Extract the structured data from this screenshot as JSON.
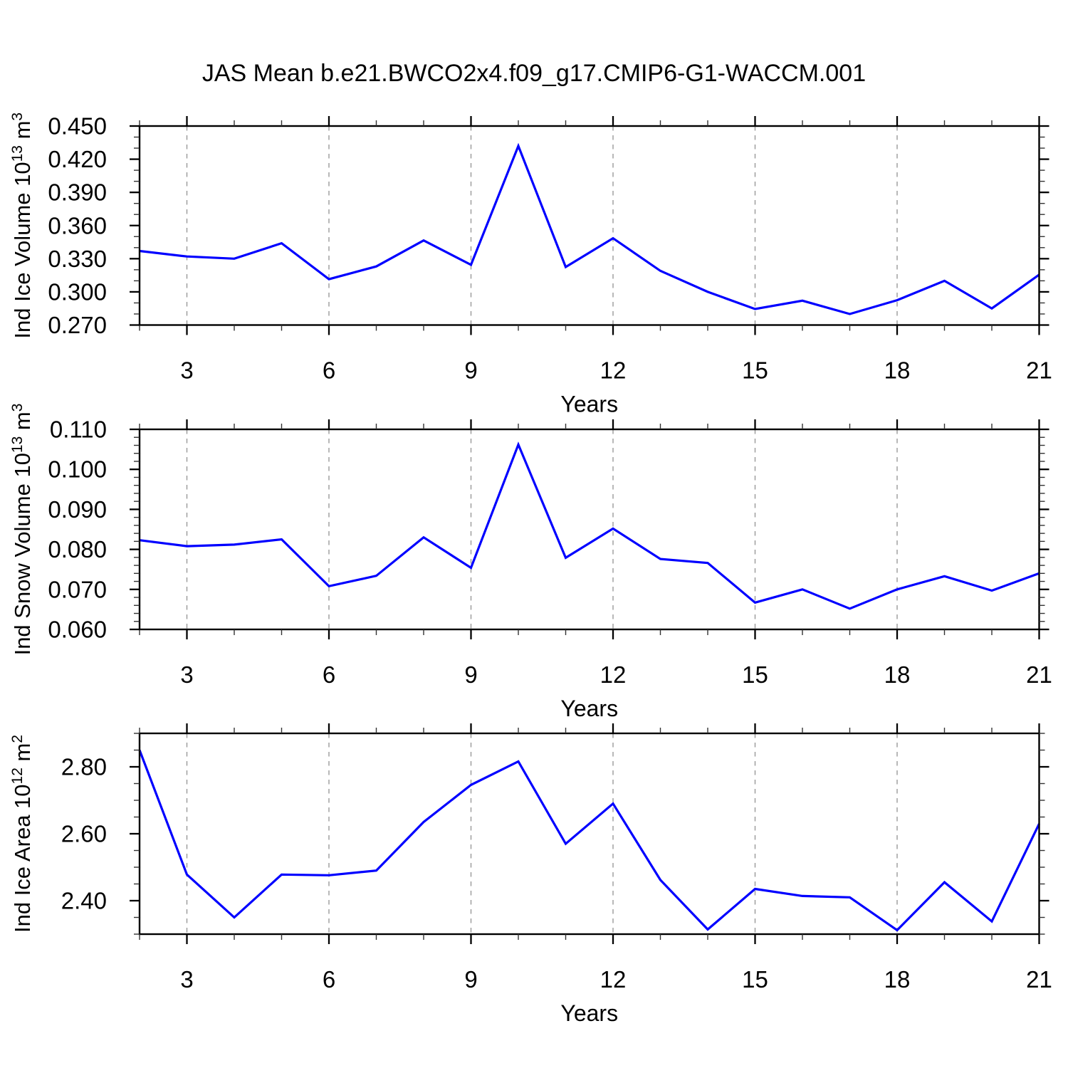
{
  "title": "JAS Mean b.e21.BWCO2x4.f09_g17.CMIP6-G1-WACCM.001",
  "chart_data": {
    "type": "line",
    "title": "JAS Mean b.e21.BWCO2x4.f09_g17.CMIP6-G1-WACCM.001",
    "xlabel": "Years",
    "x": [
      2,
      3,
      4,
      5,
      6,
      7,
      8,
      9,
      10,
      11,
      12,
      13,
      14,
      15,
      16,
      17,
      18,
      19,
      20,
      21
    ],
    "x_range": [
      2,
      21
    ],
    "x_major_ticks": [
      3,
      6,
      9,
      12,
      15,
      18,
      21
    ],
    "x_tick_labels": [
      "3",
      "6",
      "9",
      "12",
      "15",
      "18",
      "21"
    ],
    "x_minor_step": 1,
    "x_grid_years": [
      3,
      6,
      9,
      12,
      15,
      18
    ],
    "grid_style": "vertical dashed",
    "legend": "none",
    "series_color": "#0000ff",
    "grid_color": "#999999",
    "axis_color": "#000000",
    "panels": [
      {
        "id": "ice-volume",
        "ylabel": "Ind Ice Volume 10¹³ m³",
        "ylabel_parts": [
          {
            "text": "Ind Ice Volume 10",
            "sup": false
          },
          {
            "text": "13",
            "sup": true
          },
          {
            "text": " m",
            "sup": false
          },
          {
            "text": "3",
            "sup": true
          }
        ],
        "ylim": [
          0.27,
          0.45
        ],
        "y_major": [
          {
            "value": 0.45,
            "label": "0.450"
          },
          {
            "value": 0.42,
            "label": "0.420"
          },
          {
            "value": 0.39,
            "label": "0.390"
          },
          {
            "value": 0.36,
            "label": "0.360"
          },
          {
            "value": 0.33,
            "label": "0.330"
          },
          {
            "value": 0.3,
            "label": "0.300"
          },
          {
            "value": 0.27,
            "label": "0.270"
          }
        ],
        "y_minor_step": 0.01,
        "values": [
          0.337,
          0.332,
          0.33,
          0.344,
          0.3115,
          0.323,
          0.3465,
          0.3245,
          0.432,
          0.3225,
          0.3485,
          0.319,
          0.3,
          0.2845,
          0.292,
          0.28,
          0.2925,
          0.31,
          0.285,
          0.3155
        ]
      },
      {
        "id": "snow-volume",
        "ylabel": "Ind Snow Volume 10¹³ m³",
        "ylabel_parts": [
          {
            "text": "Ind Snow Volume 10",
            "sup": false
          },
          {
            "text": "13",
            "sup": true
          },
          {
            "text": " m",
            "sup": false
          },
          {
            "text": "3",
            "sup": true
          }
        ],
        "ylim": [
          0.06,
          0.11
        ],
        "y_major": [
          {
            "value": 0.11,
            "label": "0.110"
          },
          {
            "value": 0.1,
            "label": "0.100"
          },
          {
            "value": 0.09,
            "label": "0.090"
          },
          {
            "value": 0.08,
            "label": "0.080"
          },
          {
            "value": 0.07,
            "label": "0.070"
          },
          {
            "value": 0.06,
            "label": "0.060"
          }
        ],
        "y_minor_step": 0.002,
        "values": [
          0.0823,
          0.0808,
          0.0812,
          0.0825,
          0.0708,
          0.0734,
          0.083,
          0.0754,
          0.1062,
          0.0779,
          0.0852,
          0.0776,
          0.0766,
          0.0667,
          0.07,
          0.0652,
          0.07,
          0.0733,
          0.0697,
          0.074
        ]
      },
      {
        "id": "ice-area",
        "ylabel": "Ind Ice Area 10¹² m²",
        "ylabel_parts": [
          {
            "text": "Ind Ice Area 10",
            "sup": false
          },
          {
            "text": "12",
            "sup": true
          },
          {
            "text": " m",
            "sup": false
          },
          {
            "text": "2",
            "sup": true
          }
        ],
        "ylim": [
          2.3,
          2.9
        ],
        "y_major": [
          {
            "value": 2.8,
            "label": "2.80"
          },
          {
            "value": 2.6,
            "label": "2.60"
          },
          {
            "value": 2.4,
            "label": "2.40"
          }
        ],
        "y_minor_step": 0.05,
        "values": [
          2.85,
          2.478,
          2.35,
          2.478,
          2.476,
          2.49,
          2.635,
          2.746,
          2.816,
          2.57,
          2.69,
          2.462,
          2.314,
          2.435,
          2.414,
          2.41,
          2.312,
          2.455,
          2.338,
          2.63
        ]
      }
    ]
  }
}
